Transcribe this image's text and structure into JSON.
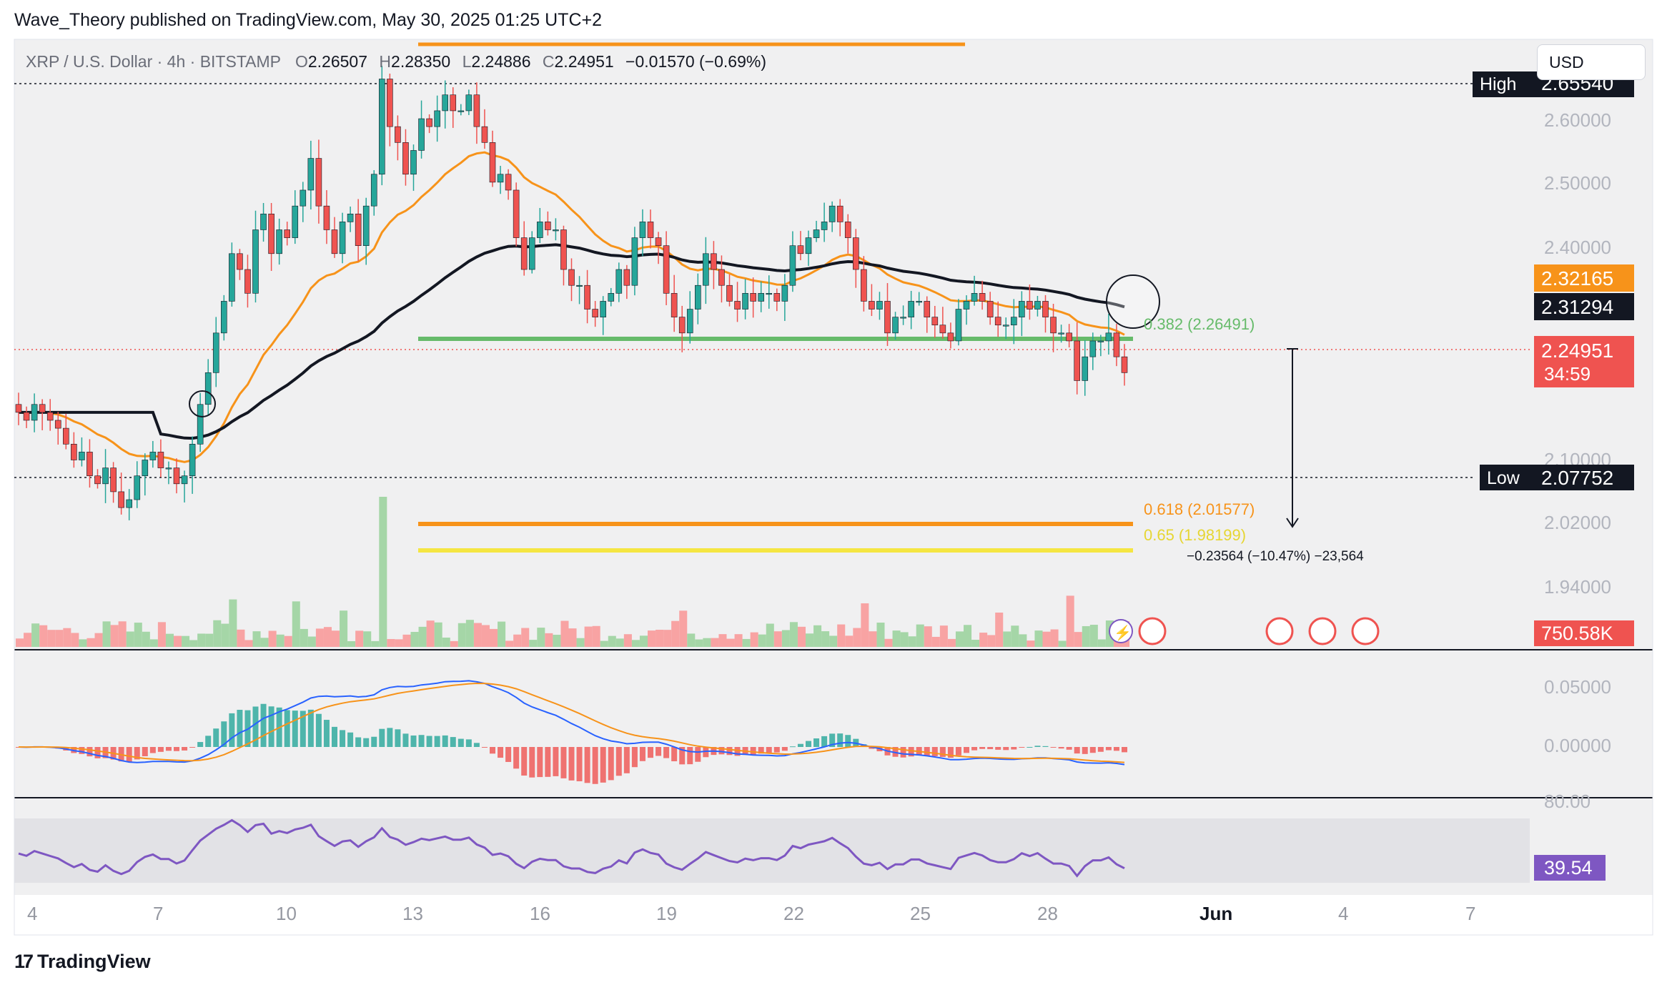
{
  "header": {
    "publisher_line": "Wave_Theory published on TradingView.com, May 30, 2025 01:25 UTC+2",
    "symbol": "XRP / U.S. Dollar · 4h · BITSTAMP",
    "ohlc": {
      "o_label": "O",
      "o_value": "2.26507",
      "h_label": "H",
      "h_value": "2.28350",
      "l_label": "L",
      "l_value": "2.24886",
      "c_label": "C",
      "c_value": "2.24951",
      "change": "−0.01570 (−0.69%)"
    }
  },
  "currency_button": "USD",
  "footer": {
    "logo_mark": "17",
    "logo_text": "TradingView"
  },
  "colors": {
    "up": "#26a69a",
    "down": "#ef5350",
    "ema_orange": "#f7931a",
    "ema_black": "#131722",
    "fib_green": "#66bb6a",
    "fib_orange": "#f7931a",
    "fib_yellow": "#f5e642",
    "rsi": "#7e57c2",
    "vol_up": "#a5d6a7",
    "vol_down": "#f8a3a3"
  },
  "chart_data": [
    {
      "type": "candlestick",
      "panel": "price",
      "yaxis_ticks": [
        "2.60000",
        "2.50000",
        "2.40000",
        "2.10000",
        "2.02000",
        "1.94000"
      ],
      "ylim": [
        1.9,
        2.67
      ],
      "x_ticks": [
        "4",
        "7",
        "10",
        "13",
        "16",
        "19",
        "22",
        "25",
        "28",
        "Jun",
        "4",
        "7"
      ],
      "high_label": "High",
      "high_value": "2.65540",
      "low_label": "Low",
      "low_value": "2.07752",
      "price_badges": {
        "ema_fast": "2.32165",
        "ema_slow": "2.31294",
        "last": "2.24951",
        "countdown": "34:59"
      },
      "fib_levels": [
        {
          "label": "0.382 (2.26491)",
          "value": 2.26491
        },
        {
          "label": "0.618 (2.01577)",
          "value": 2.01577
        },
        {
          "label": "0.65 (1.98199)",
          "value": 1.98199
        }
      ],
      "measure": "−0.23564 (−10.47%) −23,564",
      "closes": [
        2.2,
        2.19,
        2.21,
        2.2,
        2.19,
        2.18,
        2.16,
        2.14,
        2.15,
        2.12,
        2.11,
        2.13,
        2.1,
        2.08,
        2.09,
        2.12,
        2.14,
        2.15,
        2.13,
        2.13,
        2.11,
        2.12,
        2.16,
        2.21,
        2.25,
        2.3,
        2.34,
        2.4,
        2.38,
        2.35,
        2.43,
        2.45,
        2.4,
        2.43,
        2.42,
        2.46,
        2.48,
        2.52,
        2.46,
        2.43,
        2.4,
        2.44,
        2.45,
        2.41,
        2.46,
        2.5,
        2.62,
        2.56,
        2.54,
        2.5,
        2.53,
        2.57,
        2.56,
        2.58,
        2.6,
        2.58,
        2.58,
        2.6,
        2.56,
        2.54,
        2.49,
        2.5,
        2.48,
        2.42,
        2.38,
        2.42,
        2.44,
        2.43,
        2.43,
        2.38,
        2.36,
        2.36,
        2.33,
        2.32,
        2.34,
        2.35,
        2.38,
        2.36,
        2.42,
        2.44,
        2.42,
        2.41,
        2.35,
        2.32,
        2.3,
        2.33,
        2.36,
        2.4,
        2.38,
        2.36,
        2.34,
        2.33,
        2.35,
        2.34,
        2.35,
        2.35,
        2.34,
        2.36,
        2.41,
        2.4,
        2.42,
        2.43,
        2.44,
        2.46,
        2.44,
        2.42,
        2.38,
        2.34,
        2.33,
        2.34,
        2.3,
        2.32,
        2.32,
        2.34,
        2.34,
        2.32,
        2.31,
        2.3,
        2.29,
        2.33,
        2.34,
        2.35,
        2.34,
        2.32,
        2.31,
        2.31,
        2.32,
        2.34,
        2.33,
        2.34,
        2.32,
        2.3,
        2.3,
        2.29,
        2.24,
        2.27,
        2.29,
        2.29,
        2.3,
        2.27,
        2.25
      ]
    },
    {
      "type": "bar",
      "panel": "volume",
      "last_value": "750.58K"
    },
    {
      "type": "line",
      "panel": "macd",
      "yaxis_ticks": [
        "0.05000",
        "0.00000"
      ]
    },
    {
      "type": "line",
      "panel": "rsi",
      "yaxis_ticks": [
        "80.00"
      ],
      "last_value": "39.54"
    }
  ]
}
